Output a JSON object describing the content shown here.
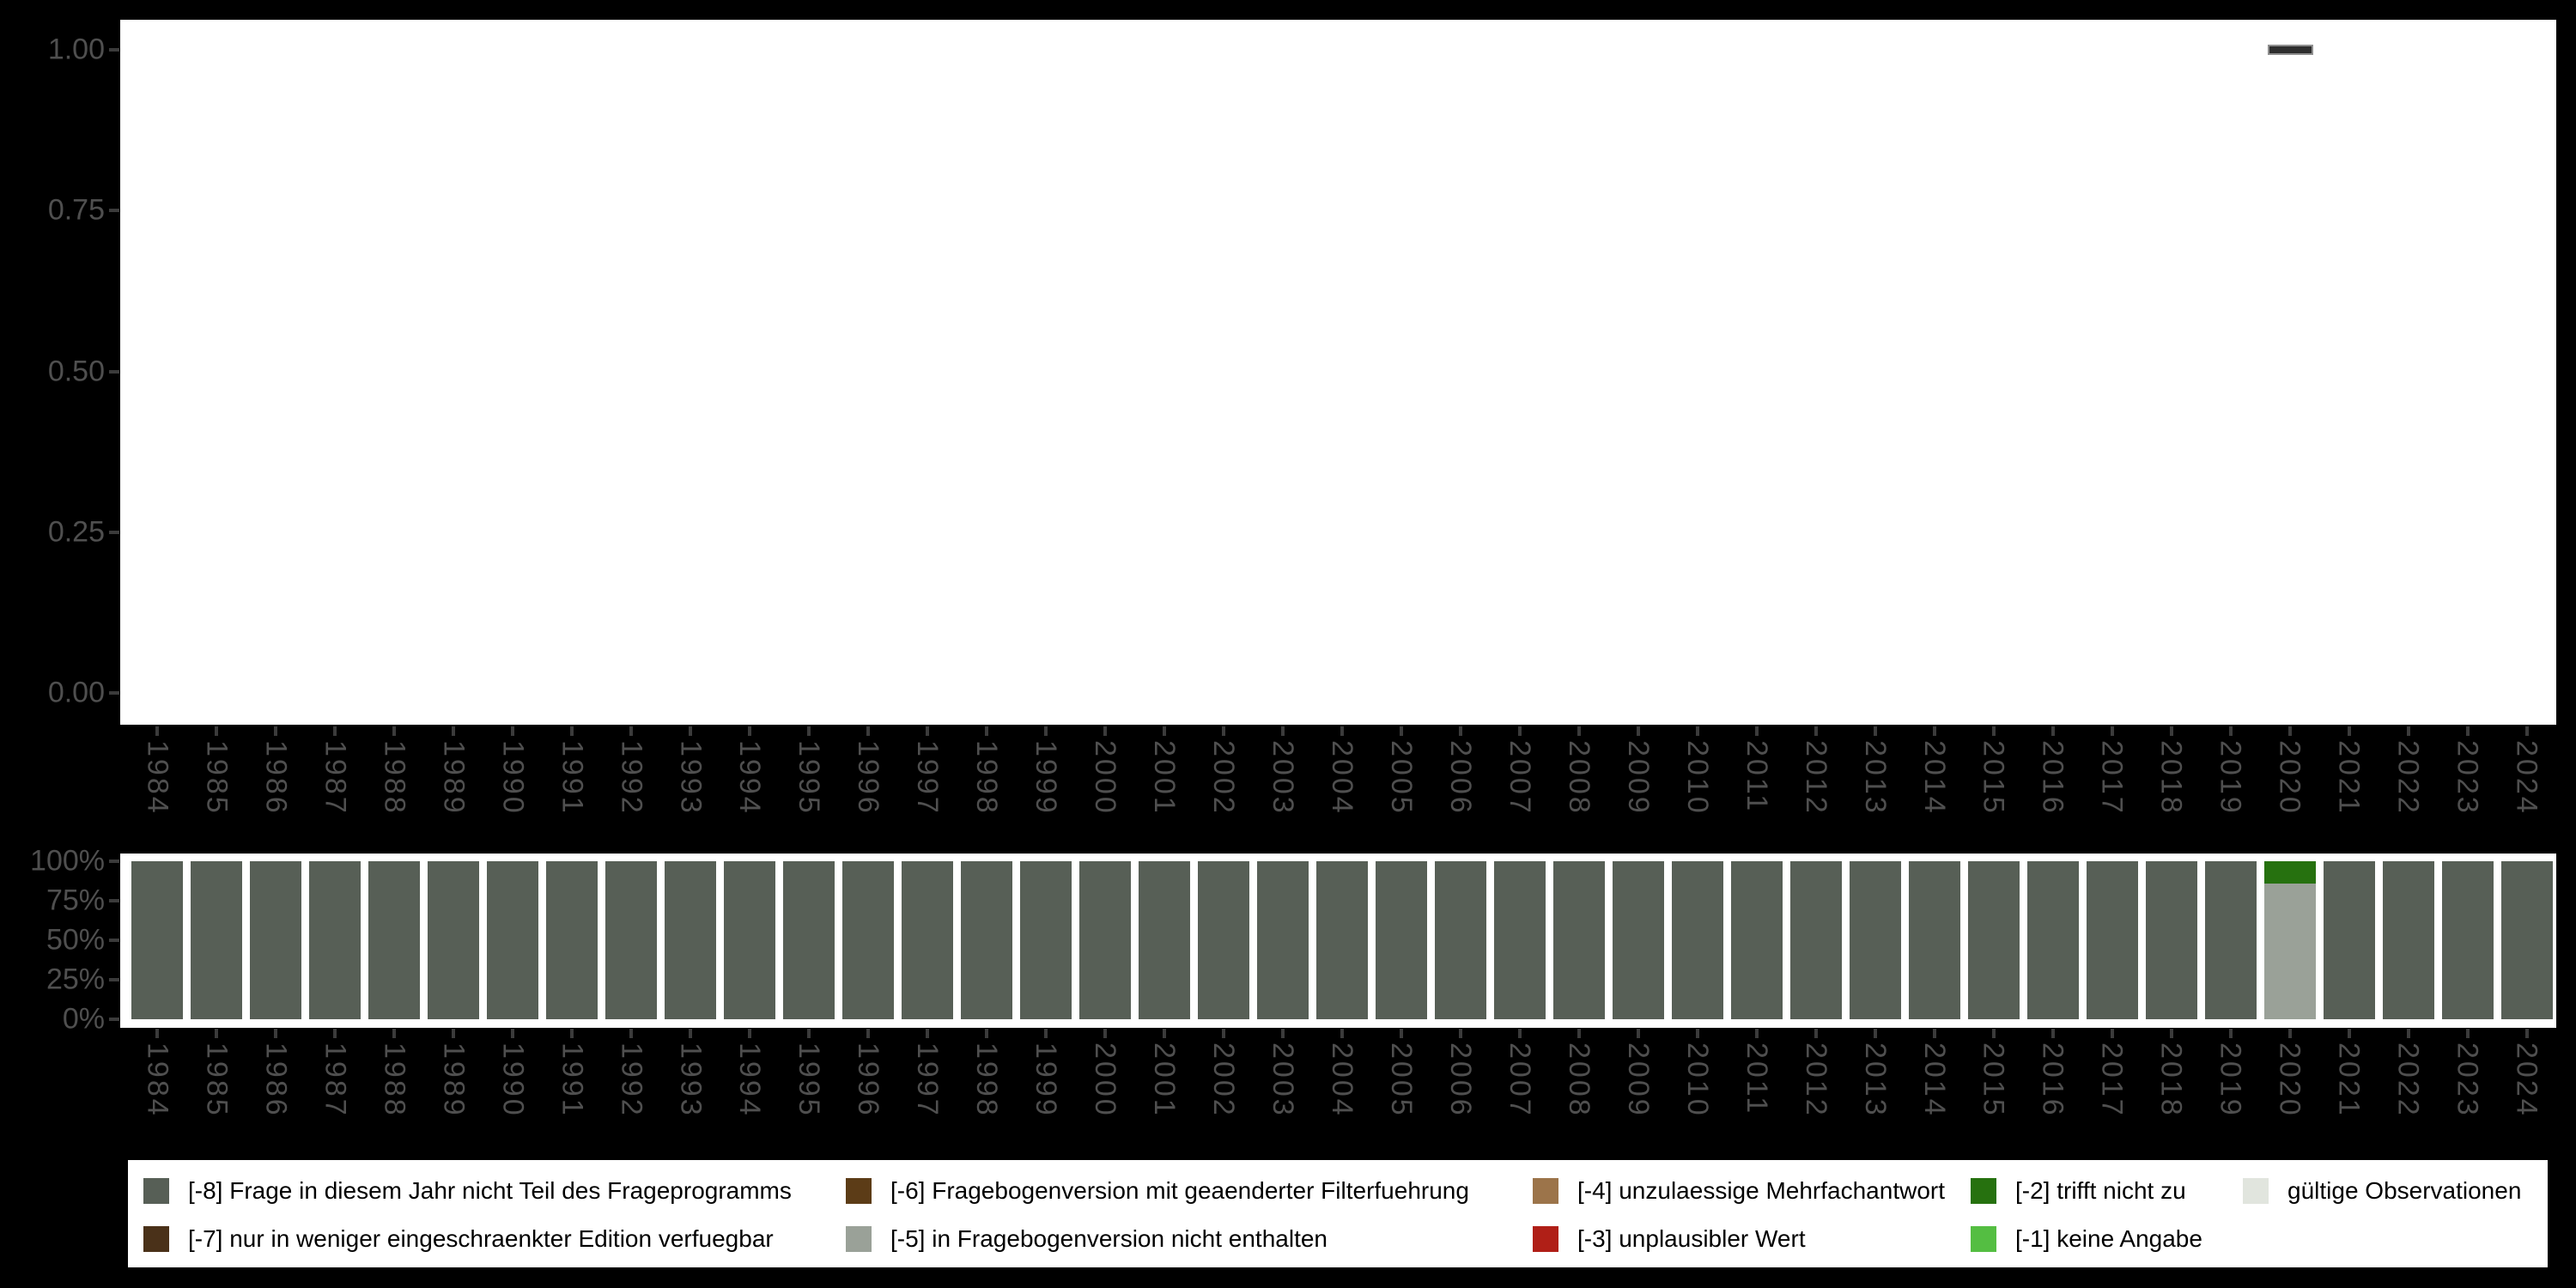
{
  "page": {
    "background": "#000000",
    "panel_background": "#ffffff"
  },
  "colors": {
    "axis_text": "#4f4f4f",
    "axis_tick": "#3b3b3b",
    "dash_fill": "#2e2e2e",
    "dash_border": "#8f8f8f",
    "code_-8": "#575f56",
    "code_-7": "#4a3119",
    "code_-6": "#5c3c17",
    "code_-5": "#9aa198",
    "code_-4": "#9c744a",
    "code_-3": "#b01f17",
    "code_-2": "#26710f",
    "code_-1": "#54be42",
    "valid": "#e1e5de"
  },
  "chart_data": [
    {
      "type": "bar",
      "title": "",
      "xlabel": "",
      "ylabel": "",
      "x_categories": [
        1984,
        1985,
        1986,
        1987,
        1988,
        1989,
        1990,
        1991,
        1992,
        1993,
        1994,
        1995,
        1996,
        1997,
        1998,
        1999,
        2000,
        2001,
        2002,
        2003,
        2004,
        2005,
        2006,
        2007,
        2008,
        2009,
        2010,
        2011,
        2012,
        2013,
        2014,
        2015,
        2016,
        2017,
        2018,
        2019,
        2020,
        2021,
        2022,
        2023,
        2024
      ],
      "y_ticks": [
        "1.00",
        "0.75",
        "0.50",
        "0.25",
        "0.00"
      ],
      "y_tick_values": [
        1.0,
        0.75,
        0.5,
        0.25,
        0.0
      ],
      "ylim": [
        0.0,
        1.0
      ],
      "grid": false,
      "legend_position": "none",
      "marker": "dash",
      "points": [
        {
          "year": 2020,
          "value": 1.0
        }
      ]
    },
    {
      "type": "stacked-bar-100",
      "title": "",
      "xlabel": "",
      "ylabel": "",
      "x_categories": [
        1984,
        1985,
        1986,
        1987,
        1988,
        1989,
        1990,
        1991,
        1992,
        1993,
        1994,
        1995,
        1996,
        1997,
        1998,
        1999,
        2000,
        2001,
        2002,
        2003,
        2004,
        2005,
        2006,
        2007,
        2008,
        2009,
        2010,
        2011,
        2012,
        2013,
        2014,
        2015,
        2016,
        2017,
        2018,
        2019,
        2020,
        2021,
        2022,
        2023,
        2024
      ],
      "y_ticks": [
        "100%",
        "75%",
        "50%",
        "25%",
        "0%"
      ],
      "y_tick_values": [
        100,
        75,
        50,
        25,
        0
      ],
      "ylim": [
        0,
        100
      ],
      "grid": false,
      "legend_position": "bottom",
      "default_stack": [
        {
          "code": "[-8]",
          "pct": 100
        }
      ],
      "overrides": {
        "2020": [
          {
            "code": "[-5]",
            "pct": 86
          },
          {
            "code": "[-2]",
            "pct": 14
          }
        ]
      }
    }
  ],
  "legend": {
    "rows": 2,
    "columns": 5,
    "items": [
      {
        "code": "[-8]",
        "label": "[-8] Frage in diesem Jahr nicht Teil des Frageprogramms",
        "color": "#575f56"
      },
      {
        "code": "[-7]",
        "label": "[-7] nur in weniger eingeschraenkter Edition verfuegbar",
        "color": "#4a3119"
      },
      {
        "code": "[-6]",
        "label": "[-6] Fragebogenversion mit geaenderter Filterfuehrung",
        "color": "#5c3c17"
      },
      {
        "code": "[-5]",
        "label": "[-5] in Fragebogenversion nicht enthalten",
        "color": "#9aa198"
      },
      {
        "code": "[-4]",
        "label": "[-4] unzulaessige Mehrfachantwort",
        "color": "#9c744a"
      },
      {
        "code": "[-3]",
        "label": "[-3] unplausibler Wert",
        "color": "#b01f17"
      },
      {
        "code": "[-2]",
        "label": "[-2] trifft nicht zu",
        "color": "#26710f"
      },
      {
        "code": "[-1]",
        "label": "[-1] keine Angabe",
        "color": "#54be42"
      },
      {
        "code": "valid",
        "label": "gültige Observationen",
        "color": "#e1e5de"
      }
    ]
  }
}
